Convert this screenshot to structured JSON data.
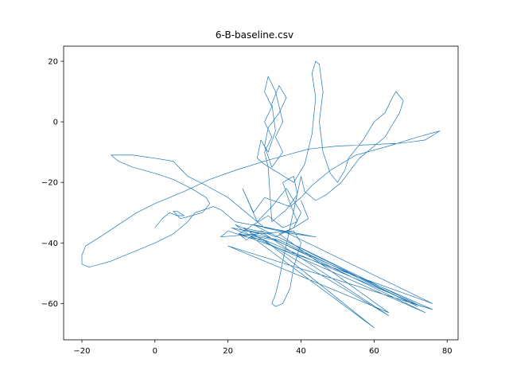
{
  "chart_data": {
    "type": "line",
    "title": "6-B-baseline.csv",
    "xlabel": "",
    "ylabel": "",
    "xlim": [
      -25,
      83
    ],
    "ylim": [
      -72,
      25
    ],
    "xticks": [
      -20,
      0,
      20,
      40,
      60,
      80
    ],
    "yticks": [
      20,
      0,
      -20,
      -40,
      -60
    ],
    "grid": false,
    "line_color": "#1f77b4",
    "series": [
      {
        "name": "",
        "points": [
          [
            0,
            -35
          ],
          [
            2,
            -32
          ],
          [
            4,
            -30
          ],
          [
            6,
            -31
          ],
          [
            8,
            -31
          ],
          [
            6,
            -29.5
          ],
          [
            5,
            -29.5
          ],
          [
            7,
            -32
          ],
          [
            10,
            -31
          ],
          [
            13,
            -30
          ],
          [
            15,
            -27
          ],
          [
            14,
            -25
          ],
          [
            10,
            -22
          ],
          [
            5,
            -19
          ],
          [
            0,
            -17
          ],
          [
            -6,
            -15
          ],
          [
            -10,
            -13
          ],
          [
            -12,
            -11
          ],
          [
            -6,
            -11
          ],
          [
            0,
            -12
          ],
          [
            5,
            -13
          ],
          [
            9,
            -18
          ],
          [
            14,
            -21
          ],
          [
            20,
            -25
          ],
          [
            25,
            -30
          ],
          [
            28,
            -33
          ],
          [
            30,
            -35
          ],
          [
            34,
            -36
          ],
          [
            38,
            -37
          ],
          [
            44,
            -38
          ],
          [
            22,
            -33
          ],
          [
            20,
            -31
          ],
          [
            18,
            -29
          ],
          [
            16,
            -28
          ],
          [
            11,
            -30
          ],
          [
            9,
            -33
          ],
          [
            5,
            -37
          ],
          [
            0,
            -40
          ],
          [
            -6,
            -43
          ],
          [
            -12,
            -46
          ],
          [
            -18,
            -48
          ],
          [
            -20,
            -47
          ],
          [
            -20,
            -44
          ],
          [
            -19,
            -41
          ],
          [
            -15,
            -38
          ],
          [
            -10,
            -34
          ],
          [
            -5,
            -30
          ],
          [
            0,
            -27
          ],
          [
            8,
            -23
          ],
          [
            15,
            -19
          ],
          [
            22,
            -16
          ],
          [
            30,
            -13
          ],
          [
            36,
            -11
          ],
          [
            42,
            -9
          ],
          [
            50,
            -8
          ],
          [
            60,
            -7.5
          ],
          [
            68,
            -7
          ],
          [
            74,
            -6
          ],
          [
            78,
            -3
          ],
          [
            72,
            -5
          ],
          [
            64,
            -8
          ],
          [
            55,
            -11
          ],
          [
            48,
            -16
          ],
          [
            43,
            -21
          ],
          [
            40,
            -25
          ],
          [
            37,
            -28
          ],
          [
            30,
            -25
          ],
          [
            27,
            -30
          ],
          [
            24,
            -22
          ],
          [
            28,
            -33
          ],
          [
            32,
            -28
          ],
          [
            36,
            -22
          ],
          [
            40,
            -30
          ],
          [
            38,
            -35
          ],
          [
            33,
            -38
          ],
          [
            29,
            -36
          ],
          [
            25,
            -39
          ],
          [
            23,
            -37
          ],
          [
            27,
            -34
          ],
          [
            31,
            -31
          ],
          [
            35,
            -35
          ],
          [
            39,
            -33
          ],
          [
            37,
            -27
          ],
          [
            35,
            -20
          ],
          [
            38,
            -18
          ],
          [
            39,
            -24
          ],
          [
            36,
            -29
          ],
          [
            32,
            -33
          ],
          [
            31,
            -15
          ],
          [
            30,
            -10
          ],
          [
            32,
            -5
          ],
          [
            30,
            0
          ],
          [
            32,
            5
          ],
          [
            30,
            10
          ],
          [
            31,
            15
          ],
          [
            33,
            10
          ],
          [
            34,
            5
          ],
          [
            35,
            0
          ],
          [
            33,
            -5
          ],
          [
            35,
            -10
          ],
          [
            32,
            -15
          ],
          [
            30,
            -8
          ],
          [
            31,
            -2
          ],
          [
            34,
            3
          ],
          [
            36,
            8
          ],
          [
            34,
            12
          ],
          [
            32,
            6
          ],
          [
            33,
            -3
          ],
          [
            31,
            -10
          ],
          [
            29,
            -6
          ],
          [
            28,
            -12
          ],
          [
            30,
            -14
          ],
          [
            38,
            -20
          ],
          [
            41,
            -14
          ],
          [
            43,
            -4
          ],
          [
            44,
            8
          ],
          [
            43,
            16
          ],
          [
            44,
            20
          ],
          [
            45,
            19
          ],
          [
            46,
            10
          ],
          [
            45,
            0
          ],
          [
            46,
            -10
          ],
          [
            48,
            -17
          ],
          [
            50,
            -20
          ],
          [
            52,
            -16
          ],
          [
            53,
            -12
          ],
          [
            57,
            -6
          ],
          [
            60,
            0
          ],
          [
            63,
            3
          ],
          [
            65,
            8
          ],
          [
            66,
            10
          ],
          [
            68,
            7
          ],
          [
            67,
            3
          ],
          [
            63,
            -5
          ],
          [
            56,
            -12
          ],
          [
            51,
            -20
          ],
          [
            47,
            -24
          ],
          [
            44,
            -26
          ],
          [
            41,
            -23
          ],
          [
            40,
            -18
          ],
          [
            35,
            -46
          ],
          [
            34,
            -52
          ],
          [
            33,
            -57
          ],
          [
            32,
            -60
          ],
          [
            33,
            -61
          ],
          [
            35,
            -60
          ],
          [
            37,
            -55
          ],
          [
            38,
            -48
          ],
          [
            39,
            -44
          ],
          [
            40,
            -40
          ],
          [
            38,
            -36
          ],
          [
            18,
            -38
          ],
          [
            20,
            -36
          ],
          [
            25,
            -38
          ],
          [
            30,
            -39
          ],
          [
            60,
            -68
          ],
          [
            22,
            -34
          ],
          [
            26,
            -36
          ],
          [
            30,
            -37
          ],
          [
            64,
            -64
          ],
          [
            24,
            -35
          ],
          [
            28,
            -36
          ],
          [
            32,
            -37
          ],
          [
            73,
            -61
          ],
          [
            26,
            -37
          ],
          [
            30,
            -38
          ],
          [
            34,
            -39
          ],
          [
            72,
            -61
          ],
          [
            27,
            -34
          ],
          [
            31,
            -35
          ],
          [
            35,
            -36
          ],
          [
            76,
            -60
          ],
          [
            23,
            -37
          ],
          [
            28,
            -38
          ],
          [
            33,
            -39
          ],
          [
            74,
            -63
          ],
          [
            21,
            -35
          ],
          [
            25,
            -36
          ],
          [
            29,
            -37
          ],
          [
            76,
            -62
          ],
          [
            20,
            -41
          ],
          [
            24,
            -43
          ],
          [
            28,
            -45
          ],
          [
            64,
            -63
          ],
          [
            34,
            -37
          ],
          [
            38,
            -35
          ],
          [
            42,
            -32
          ],
          [
            40,
            -26
          ]
        ]
      }
    ]
  }
}
